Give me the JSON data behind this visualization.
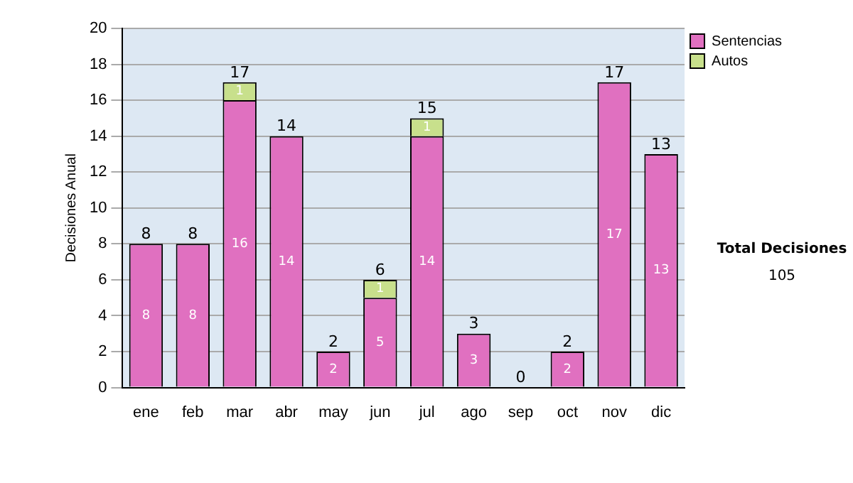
{
  "chart_data": {
    "type": "bar",
    "stacked": true,
    "ylabel": "Decisiones Anual",
    "categories": [
      "ene",
      "feb",
      "mar",
      "abr",
      "may",
      "jun",
      "jul",
      "ago",
      "sep",
      "oct",
      "nov",
      "dic"
    ],
    "series": [
      {
        "name": "Sentencias",
        "color": "#e070c0",
        "values": [
          8,
          8,
          16,
          14,
          2,
          5,
          14,
          3,
          0,
          2,
          17,
          13
        ],
        "value_labels": [
          "8",
          "8",
          "16",
          "14",
          "2",
          "5",
          "14",
          "3",
          null,
          "2",
          "17",
          "13"
        ]
      },
      {
        "name": "Autos",
        "color": "#c8e08c",
        "values": [
          0,
          0,
          1,
          0,
          0,
          1,
          1,
          0,
          0,
          0,
          0,
          0
        ],
        "value_labels": [
          null,
          null,
          "1",
          null,
          null,
          "1",
          "1",
          null,
          null,
          null,
          null,
          null
        ]
      }
    ],
    "totals": [
      "8",
      "8",
      "17",
      "14",
      "2",
      "6",
      "15",
      "3",
      "0",
      "2",
      "17",
      "13"
    ],
    "ylim": [
      0,
      20
    ],
    "yticks": [
      0,
      2,
      4,
      6,
      8,
      10,
      12,
      14,
      16,
      18,
      20
    ],
    "grid": "y",
    "legend": "right",
    "annotations": [
      "Total Decisiones",
      "105"
    ]
  }
}
